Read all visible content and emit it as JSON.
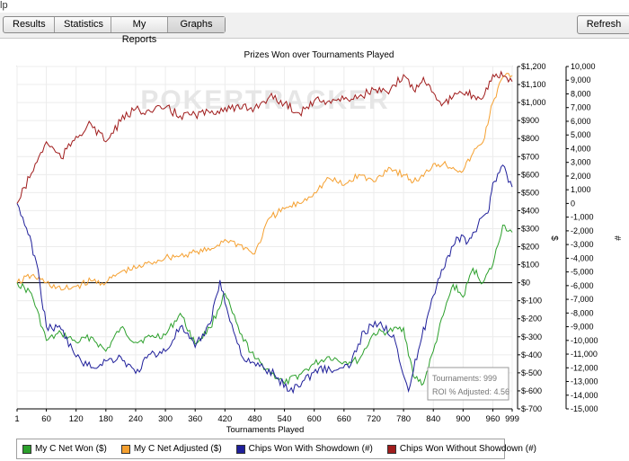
{
  "menu_fragment": "lp",
  "toolbar": {
    "tabs": [
      "Results",
      "Statistics",
      "My Reports",
      "Graphs"
    ],
    "refresh_label": "Refresh"
  },
  "watermark": "POKERTRACKER",
  "info_box": {
    "tournaments": "Tournaments: 999",
    "roi": "ROI % Adjusted: 4.56"
  },
  "colors": {
    "green": "#2ca02c",
    "orange": "#f5a030",
    "blue": "#1f1f9a",
    "red": "#a01c1c"
  },
  "chart_data": {
    "type": "line",
    "title": "Prizes Won over Tournaments Played",
    "xlabel": "Tournaments Played",
    "ylabel_left": "$",
    "ylabel_right": "#",
    "x_ticks": [
      "1",
      "60",
      "120",
      "180",
      "240",
      "300",
      "360",
      "420",
      "480",
      "540",
      "600",
      "660",
      "720",
      "780",
      "840",
      "900",
      "960",
      "999"
    ],
    "x_range": [
      1,
      999
    ],
    "y_left_range": [
      -700,
      1200
    ],
    "y_left_ticks": [
      "$1,200",
      "$1,100",
      "$1,000",
      "$900",
      "$800",
      "$700",
      "$600",
      "$500",
      "$400",
      "$300",
      "$200",
      "$100",
      "$0",
      "$-100",
      "$-200",
      "$-300",
      "$-400",
      "$-500",
      "$-600",
      "$-700"
    ],
    "y_right_range": [
      -15000,
      10000
    ],
    "y_right_ticks": [
      "10,000",
      "9,000",
      "8,000",
      "7,000",
      "6,000",
      "5,000",
      "4,000",
      "3,000",
      "2,000",
      "1,000",
      "0",
      "-1,000",
      "-2,000",
      "-3,000",
      "-4,000",
      "-5,000",
      "-6,000",
      "-7,000",
      "-8,000",
      "-9,000",
      "-10,000",
      "-11,000",
      "-12,000",
      "-13,000",
      "-14,000",
      "-15,000"
    ],
    "series": [
      {
        "name": "My C Net Won ($)",
        "axis": "left",
        "color": "#2ca02c",
        "x": [
          1,
          30,
          60,
          90,
          120,
          150,
          180,
          210,
          240,
          270,
          300,
          330,
          360,
          390,
          420,
          450,
          480,
          510,
          540,
          570,
          600,
          630,
          660,
          690,
          720,
          750,
          780,
          800,
          820,
          840,
          860,
          880,
          900,
          920,
          940,
          960,
          980,
          999
        ],
        "y": [
          0,
          -60,
          -320,
          -280,
          -330,
          -300,
          -380,
          -250,
          -330,
          -300,
          -290,
          -170,
          -340,
          -250,
          -60,
          -280,
          -420,
          -490,
          -560,
          -510,
          -450,
          -410,
          -440,
          -430,
          -280,
          -270,
          -250,
          -520,
          -560,
          -380,
          -180,
          -10,
          -80,
          80,
          0,
          100,
          320,
          280
        ]
      },
      {
        "name": "My C Net Adjusted ($)",
        "axis": "left",
        "color": "#f5a030",
        "x": [
          1,
          30,
          60,
          90,
          120,
          150,
          180,
          210,
          240,
          270,
          300,
          330,
          360,
          390,
          420,
          450,
          480,
          510,
          540,
          570,
          600,
          630,
          660,
          690,
          720,
          750,
          780,
          800,
          820,
          840,
          860,
          880,
          900,
          920,
          940,
          960,
          980,
          999
        ],
        "y": [
          0,
          40,
          0,
          -40,
          -20,
          10,
          0,
          60,
          80,
          110,
          140,
          150,
          170,
          180,
          240,
          210,
          160,
          360,
          410,
          440,
          500,
          580,
          540,
          600,
          560,
          640,
          600,
          560,
          590,
          660,
          660,
          640,
          620,
          720,
          780,
          1000,
          1140,
          1150
        ]
      },
      {
        "name": "Chips Won With Showdown (#)",
        "axis": "right",
        "color": "#1f1f9a",
        "x": [
          1,
          20,
          40,
          60,
          90,
          120,
          150,
          180,
          210,
          240,
          270,
          300,
          330,
          360,
          390,
          410,
          430,
          460,
          490,
          520,
          550,
          580,
          610,
          640,
          670,
          700,
          730,
          760,
          790,
          810,
          830,
          850,
          870,
          890,
          910,
          930,
          950,
          960,
          980,
          999
        ],
        "y": [
          0,
          -1800,
          -4300,
          -9000,
          -9200,
          -11200,
          -12000,
          -11500,
          -11200,
          -12400,
          -11000,
          -10800,
          -9000,
          -10500,
          -8800,
          -5600,
          -8600,
          -11500,
          -11900,
          -12500,
          -13700,
          -12900,
          -12000,
          -12200,
          -12000,
          -9300,
          -8800,
          -9600,
          -13700,
          -10700,
          -8000,
          -5500,
          -3800,
          -2500,
          -2800,
          -1600,
          -700,
          1500,
          2800,
          1200
        ]
      },
      {
        "name": "Chips Won Without Showdown (#)",
        "axis": "right",
        "color": "#a01c1c",
        "x": [
          1,
          30,
          60,
          90,
          120,
          150,
          180,
          210,
          240,
          270,
          300,
          330,
          360,
          390,
          420,
          450,
          480,
          510,
          540,
          570,
          600,
          630,
          660,
          690,
          720,
          750,
          780,
          800,
          820,
          840,
          860,
          880,
          900,
          920,
          940,
          960,
          980,
          999
        ],
        "y": [
          0,
          2200,
          4500,
          3300,
          4900,
          5800,
          4500,
          6000,
          6900,
          6700,
          7000,
          6400,
          6500,
          6600,
          7000,
          6900,
          7000,
          7800,
          7300,
          6600,
          7500,
          7500,
          7600,
          7800,
          8300,
          8000,
          9400,
          8300,
          9200,
          8100,
          7300,
          7800,
          8000,
          7900,
          7700,
          9400,
          9300,
          8900
        ]
      }
    ]
  }
}
